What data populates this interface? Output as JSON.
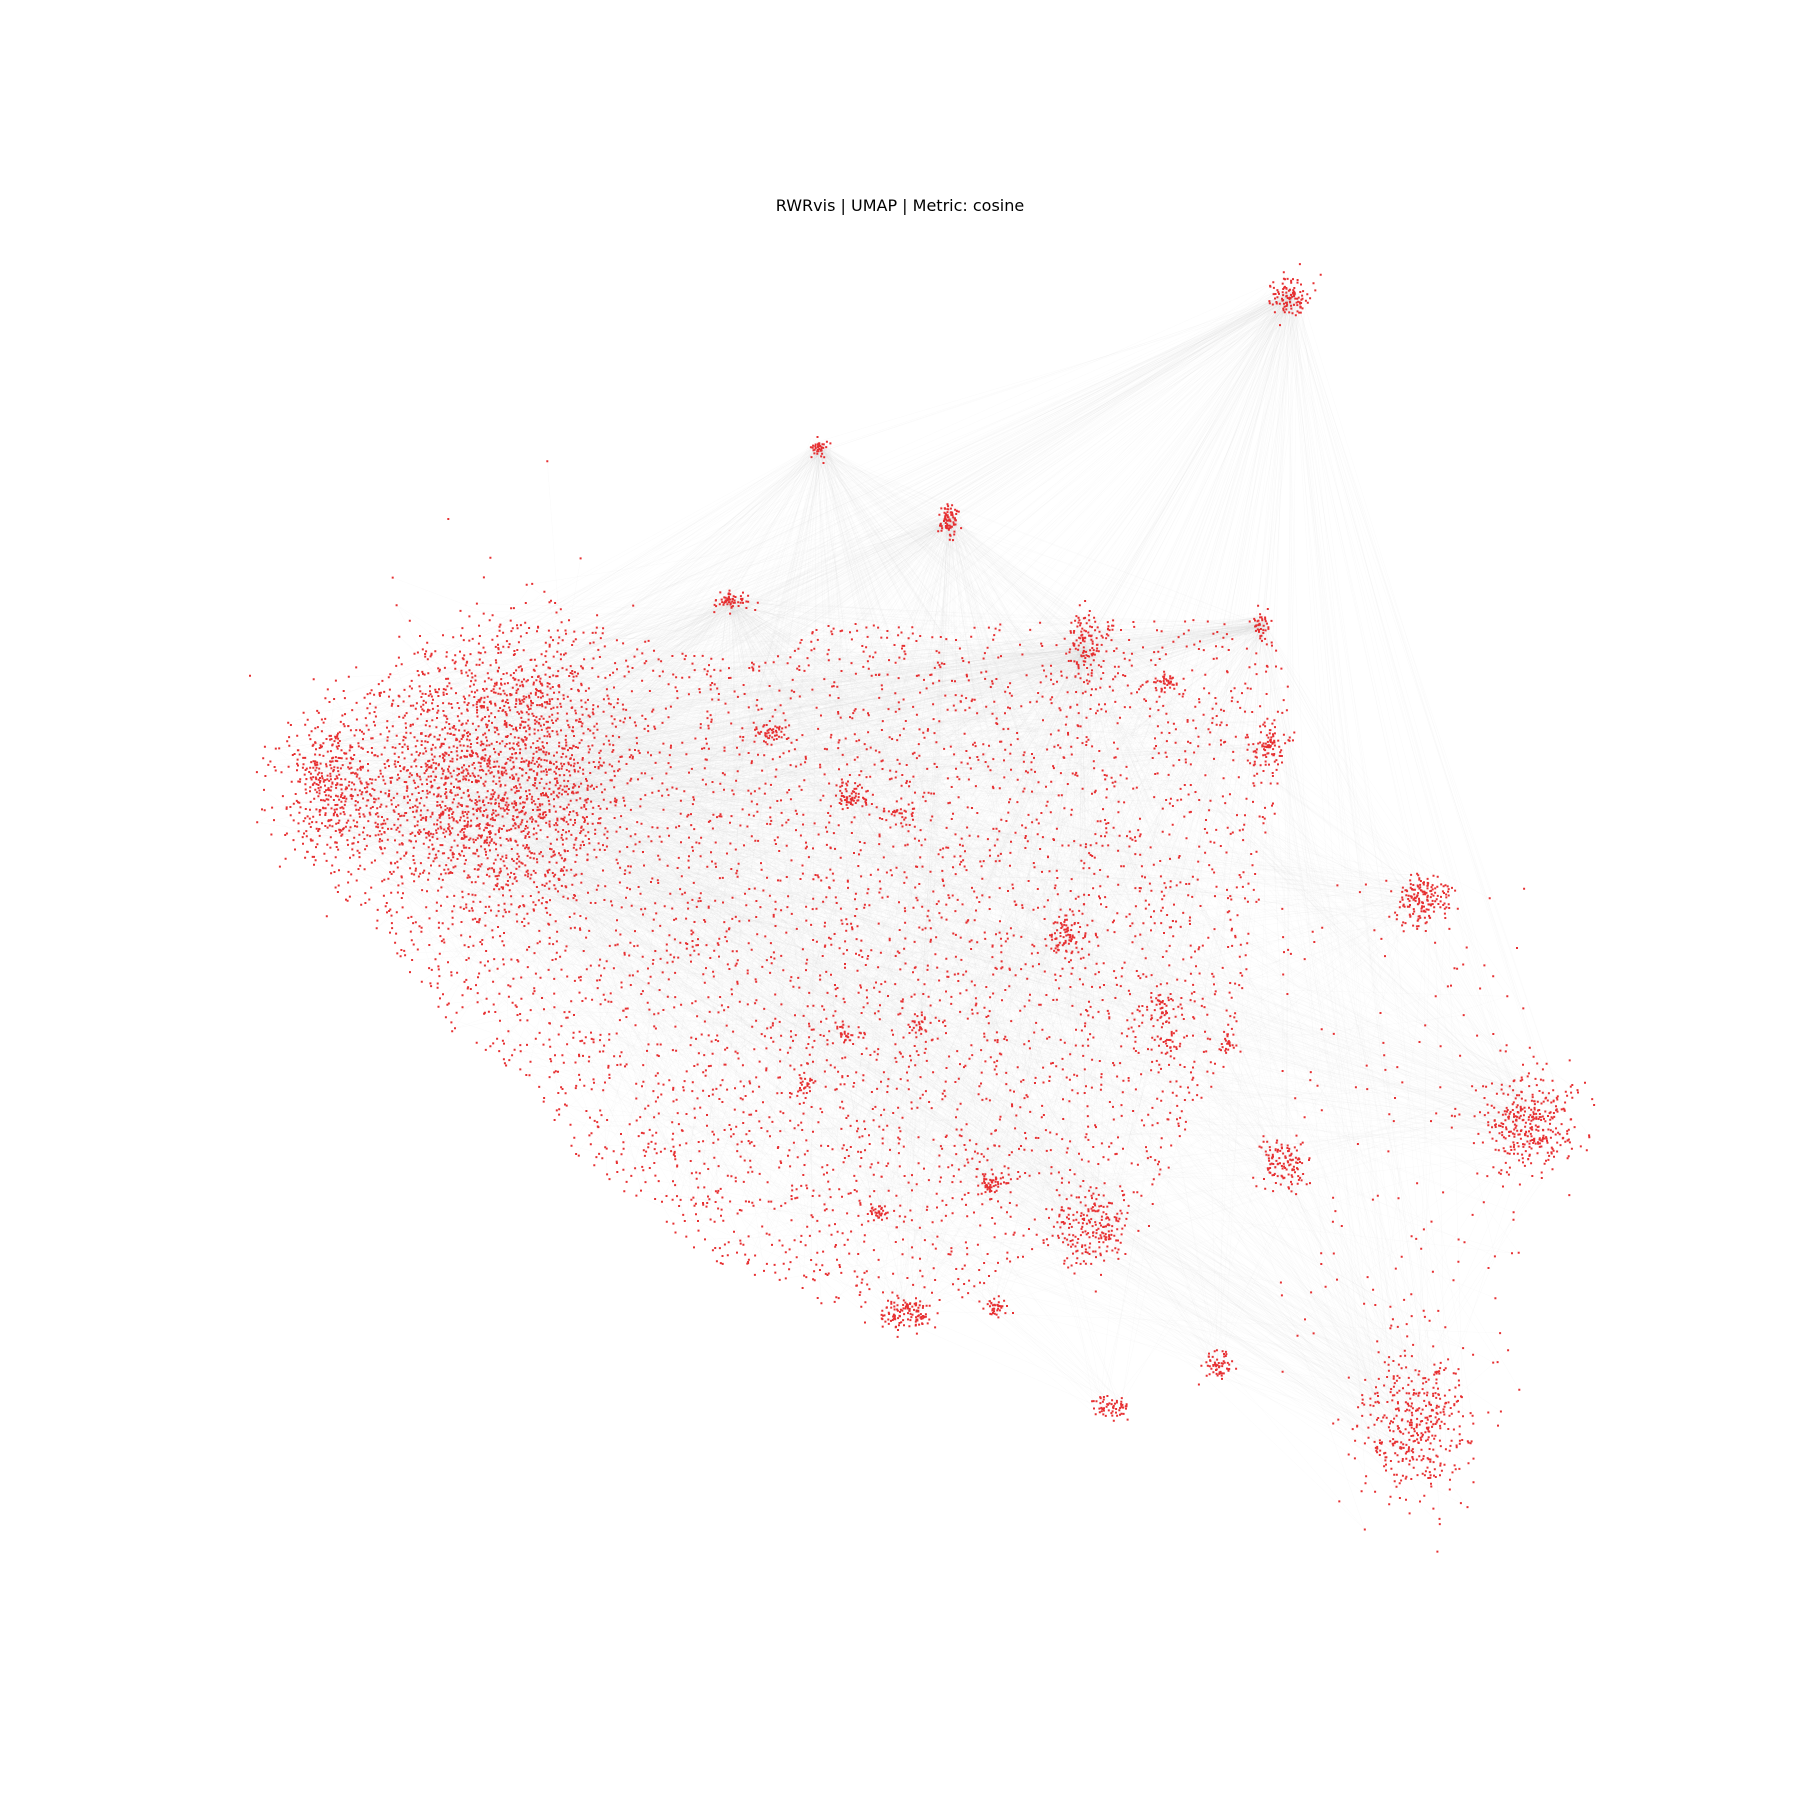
{
  "title": "RWRvis | UMAP | Metric: cosine",
  "visualization": {
    "type": "network-embedding",
    "layout": "UMAP",
    "metric": "cosine",
    "node_color": "#e41a1c",
    "edge_color": "#d9d9d9",
    "background": "#ffffff",
    "axes_visible": false,
    "legend": "none"
  }
}
